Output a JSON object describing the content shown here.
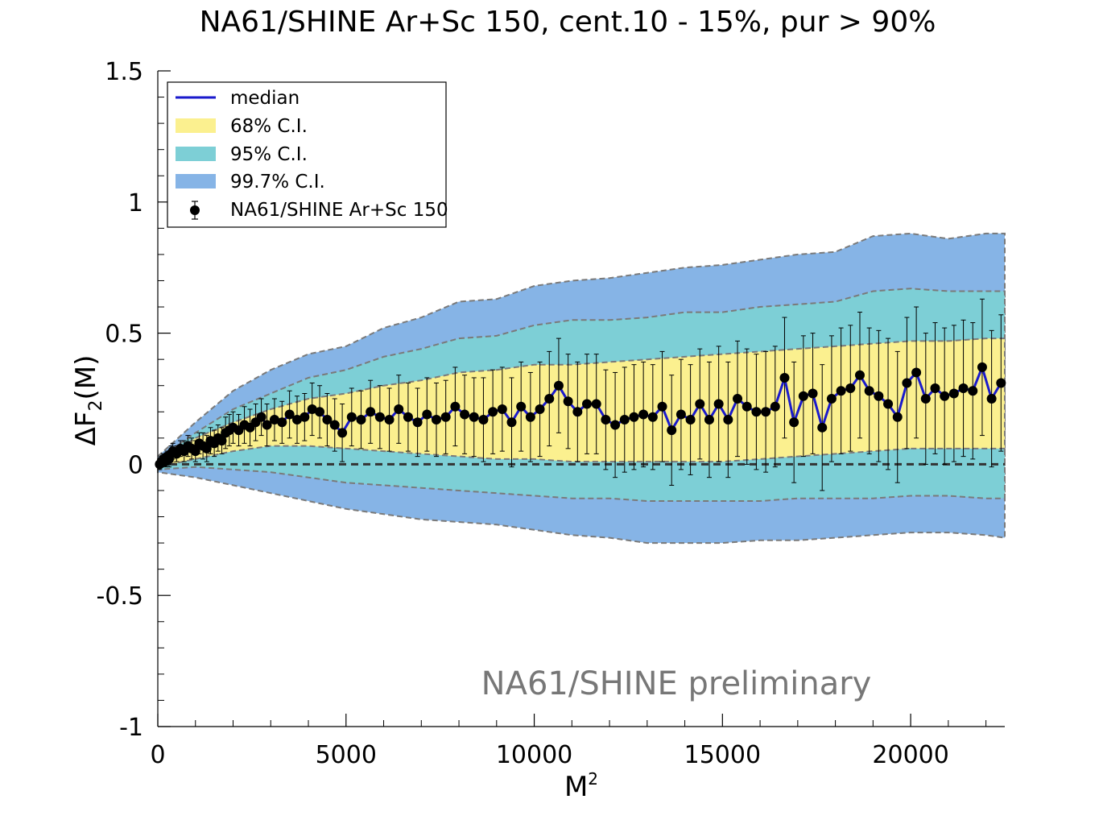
{
  "chart_data": {
    "type": "line",
    "title": "NA61/SHINE Ar+Sc 150, cent.10 - 15%, pur > 90%",
    "xlabel": "M",
    "xlabel_sup": "2",
    "ylabel": "ΔF",
    "ylabel_sub": "2",
    "ylabel_suffix": "(M)",
    "xlim": [
      0,
      22500
    ],
    "ylim": [
      -1,
      1.5
    ],
    "xticks": [
      0,
      5000,
      10000,
      15000,
      20000
    ],
    "xtick_labels": [
      "0",
      "5000",
      "10000",
      "15000",
      "20000"
    ],
    "yticks": [
      -1,
      -0.5,
      0,
      0.5,
      1,
      1.5
    ],
    "ytick_labels": [
      "-1",
      "-0.5",
      "0",
      "0.5",
      "1",
      "1.5"
    ],
    "annotation": "NA61/SHINE preliminary",
    "legend": [
      {
        "label": "median",
        "kind": "line",
        "color": "#1a1acc"
      },
      {
        "label": "68% C.I.",
        "kind": "fill",
        "color": "#fbf08f"
      },
      {
        "label": "95% C.I.",
        "kind": "fill",
        "color": "#7dcfd6"
      },
      {
        "label": "99.7% C.I.",
        "kind": "fill",
        "color": "#86b4e6"
      },
      {
        "label": "NA61/SHINE Ar+Sc 150",
        "kind": "marker",
        "color": "#000000"
      }
    ],
    "reference_line": {
      "y": 0,
      "style": "dashed",
      "color": "#333333"
    },
    "bands": {
      "x": [
        0,
        1000,
        2000,
        3000,
        4000,
        5000,
        6000,
        7000,
        8000,
        9000,
        10000,
        11000,
        12000,
        13000,
        14000,
        15000,
        16000,
        17000,
        18000,
        19000,
        20000,
        21000,
        22000,
        22500
      ],
      "p997_upper": [
        0.03,
        0.16,
        0.28,
        0.36,
        0.42,
        0.45,
        0.52,
        0.56,
        0.62,
        0.63,
        0.68,
        0.7,
        0.71,
        0.73,
        0.75,
        0.76,
        0.78,
        0.8,
        0.81,
        0.87,
        0.88,
        0.86,
        0.88,
        0.88
      ],
      "p95_upper": [
        0.02,
        0.12,
        0.21,
        0.27,
        0.33,
        0.36,
        0.41,
        0.44,
        0.48,
        0.49,
        0.53,
        0.55,
        0.55,
        0.56,
        0.58,
        0.58,
        0.6,
        0.61,
        0.62,
        0.66,
        0.67,
        0.66,
        0.66,
        0.66
      ],
      "p68_upper": [
        0.01,
        0.1,
        0.16,
        0.21,
        0.25,
        0.27,
        0.3,
        0.32,
        0.35,
        0.36,
        0.38,
        0.38,
        0.39,
        0.4,
        0.41,
        0.42,
        0.43,
        0.44,
        0.45,
        0.46,
        0.47,
        0.47,
        0.48,
        0.48
      ],
      "p68_lower": [
        -0.01,
        0.02,
        0.05,
        0.07,
        0.07,
        0.06,
        0.05,
        0.04,
        0.03,
        0.02,
        0.02,
        0.01,
        0.01,
        0.01,
        0.01,
        0.01,
        0.02,
        0.03,
        0.04,
        0.05,
        0.06,
        0.06,
        0.06,
        0.06
      ],
      "p95_lower": [
        -0.02,
        -0.01,
        -0.02,
        -0.03,
        -0.05,
        -0.07,
        -0.08,
        -0.09,
        -0.1,
        -0.11,
        -0.12,
        -0.13,
        -0.13,
        -0.14,
        -0.14,
        -0.14,
        -0.14,
        -0.13,
        -0.13,
        -0.13,
        -0.12,
        -0.12,
        -0.13,
        -0.13
      ],
      "p997_lower": [
        -0.03,
        -0.05,
        -0.08,
        -0.11,
        -0.14,
        -0.17,
        -0.19,
        -0.21,
        -0.22,
        -0.23,
        -0.25,
        -0.27,
        -0.28,
        -0.3,
        -0.3,
        -0.3,
        -0.29,
        -0.29,
        -0.28,
        -0.27,
        -0.26,
        -0.26,
        -0.27,
        -0.28
      ]
    },
    "series": [
      {
        "name": "NA61/SHINE Ar+Sc 150",
        "x": [
          50,
          100,
          150,
          200,
          250,
          300,
          350,
          400,
          500,
          600,
          700,
          800,
          900,
          1000,
          1100,
          1200,
          1300,
          1400,
          1500,
          1600,
          1700,
          1800,
          1900,
          2000,
          2150,
          2300,
          2450,
          2600,
          2750,
          2900,
          3100,
          3300,
          3500,
          3700,
          3900,
          4100,
          4300,
          4500,
          4700,
          4900,
          5150,
          5400,
          5650,
          5900,
          6150,
          6400,
          6650,
          6900,
          7150,
          7400,
          7650,
          7900,
          8150,
          8400,
          8650,
          8900,
          9150,
          9400,
          9650,
          9900,
          10150,
          10400,
          10650,
          10900,
          11150,
          11400,
          11650,
          11900,
          12150,
          12400,
          12650,
          12900,
          13150,
          13400,
          13650,
          13900,
          14150,
          14400,
          14650,
          14900,
          15150,
          15400,
          15650,
          15900,
          16150,
          16400,
          16650,
          16900,
          17150,
          17400,
          17650,
          17900,
          18150,
          18400,
          18650,
          18900,
          19150,
          19400,
          19650,
          19900,
          20150,
          20400,
          20650,
          20900,
          21150,
          21400,
          21650,
          21900,
          22150,
          22400
        ],
        "y": [
          0.0,
          0.01,
          0.02,
          0.01,
          0.03,
          0.02,
          0.04,
          0.05,
          0.04,
          0.06,
          0.05,
          0.07,
          0.06,
          0.05,
          0.08,
          0.07,
          0.06,
          0.09,
          0.08,
          0.1,
          0.09,
          0.12,
          0.13,
          0.14,
          0.13,
          0.15,
          0.14,
          0.16,
          0.18,
          0.15,
          0.17,
          0.16,
          0.19,
          0.17,
          0.18,
          0.21,
          0.2,
          0.17,
          0.15,
          0.12,
          0.18,
          0.17,
          0.2,
          0.18,
          0.17,
          0.21,
          0.18,
          0.16,
          0.19,
          0.17,
          0.18,
          0.22,
          0.19,
          0.18,
          0.17,
          0.2,
          0.21,
          0.16,
          0.22,
          0.18,
          0.21,
          0.25,
          0.3,
          0.24,
          0.2,
          0.23,
          0.23,
          0.17,
          0.15,
          0.17,
          0.18,
          0.19,
          0.18,
          0.22,
          0.13,
          0.19,
          0.17,
          0.23,
          0.17,
          0.23,
          0.17,
          0.25,
          0.22,
          0.2,
          0.2,
          0.22,
          0.33,
          0.16,
          0.26,
          0.27,
          0.14,
          0.25,
          0.28,
          0.29,
          0.34,
          0.28,
          0.26,
          0.23,
          0.18,
          0.31,
          0.35,
          0.25,
          0.29,
          0.26,
          0.27,
          0.29,
          0.28,
          0.37,
          0.25,
          0.31
        ],
        "yerr": [
          0.02,
          0.02,
          0.02,
          0.02,
          0.02,
          0.03,
          0.03,
          0.03,
          0.03,
          0.03,
          0.04,
          0.04,
          0.04,
          0.04,
          0.04,
          0.05,
          0.05,
          0.05,
          0.05,
          0.05,
          0.05,
          0.06,
          0.06,
          0.06,
          0.06,
          0.07,
          0.07,
          0.07,
          0.07,
          0.08,
          0.08,
          0.08,
          0.09,
          0.09,
          0.09,
          0.1,
          0.1,
          0.1,
          0.1,
          0.11,
          0.11,
          0.11,
          0.12,
          0.12,
          0.12,
          0.13,
          0.13,
          0.13,
          0.14,
          0.14,
          0.14,
          0.15,
          0.15,
          0.15,
          0.16,
          0.16,
          0.16,
          0.17,
          0.17,
          0.17,
          0.18,
          0.18,
          0.18,
          0.18,
          0.19,
          0.19,
          0.19,
          0.19,
          0.2,
          0.2,
          0.2,
          0.2,
          0.2,
          0.21,
          0.21,
          0.21,
          0.21,
          0.21,
          0.22,
          0.22,
          0.22,
          0.22,
          0.22,
          0.22,
          0.23,
          0.23,
          0.23,
          0.23,
          0.23,
          0.23,
          0.24,
          0.24,
          0.24,
          0.24,
          0.24,
          0.24,
          0.25,
          0.25,
          0.25,
          0.25,
          0.25,
          0.25,
          0.25,
          0.26,
          0.26,
          0.26,
          0.26,
          0.26,
          0.26,
          0.26
        ]
      }
    ]
  }
}
